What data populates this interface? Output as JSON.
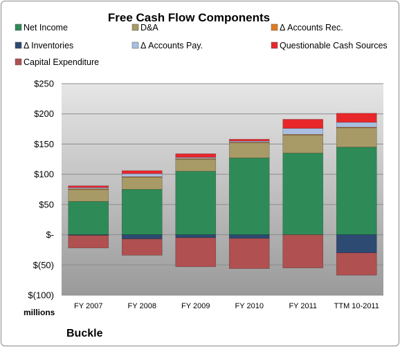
{
  "chart_data": {
    "type": "bar",
    "stacked": true,
    "title": "Free Cash Flow Components",
    "units_label": "millions",
    "company": "Buckle",
    "categories": [
      "FY 2007",
      "FY 2008",
      "FY 2009",
      "FY 2010",
      "FY 2011",
      "TTM 10-2011"
    ],
    "ylim": [
      -100,
      250
    ],
    "yticks": [
      -100,
      -50,
      0,
      50,
      100,
      150,
      200,
      250
    ],
    "ytick_labels": [
      "$(100)",
      "$(50)",
      "$-",
      "$50",
      "$100",
      "$150",
      "$200",
      "$250"
    ],
    "grid": true,
    "legend_position": "top",
    "series": [
      {
        "name": "Net Income",
        "color": "#2e8b57",
        "values": [
          55,
          75,
          105,
          127,
          135,
          145
        ]
      },
      {
        "name": "D&A",
        "color": "#a89a66",
        "values": [
          20,
          20,
          20,
          25,
          30,
          32
        ]
      },
      {
        "name": "Δ Accounts Rec.",
        "color": "#e07b20",
        "values": [
          1,
          1,
          1,
          1,
          1,
          1
        ]
      },
      {
        "name": "Δ Inventories",
        "color": "#2d4a73",
        "values": [
          -1,
          -7,
          -5,
          -6,
          0,
          -30
        ]
      },
      {
        "name": "Δ Accounts Pay.",
        "color": "#a9bfe0",
        "values": [
          2,
          5,
          2,
          2,
          10,
          8
        ]
      },
      {
        "name": "Questionable Cash Sources",
        "color": "#e8272b",
        "values": [
          3,
          5,
          6,
          3,
          15,
          15
        ]
      },
      {
        "name": "Capital Expenditure",
        "color": "#b05050",
        "values": [
          -21,
          -27,
          -48,
          -50,
          -55,
          -37
        ]
      }
    ]
  }
}
